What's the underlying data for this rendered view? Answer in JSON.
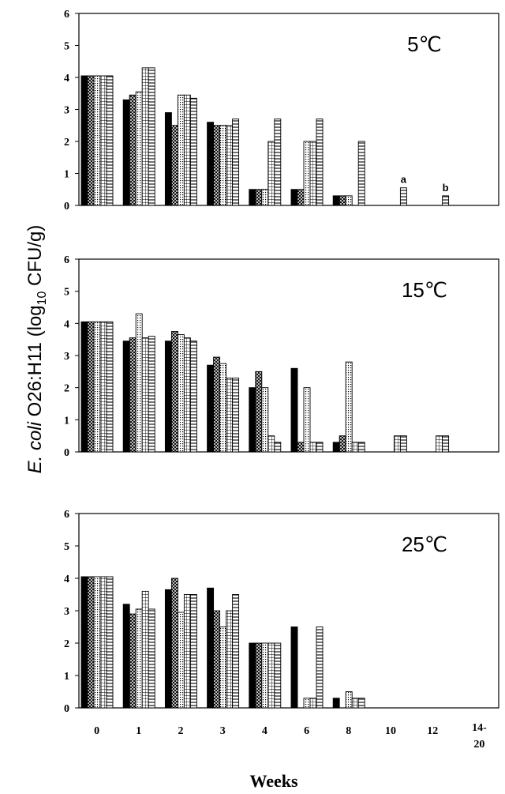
{
  "chart_data": {
    "type": "bar",
    "ylabel_italic": "E. coli",
    "ylabel_rest": " O26:H11 (log",
    "ylabel_sub": "10",
    "ylabel_tail": " CFU/g)",
    "xlabel": "Weeks",
    "categories": [
      "0",
      "1",
      "2",
      "3",
      "4",
      "6",
      "8",
      "10",
      "12",
      "14-20"
    ],
    "y_ticks": [
      "0",
      "1",
      "2",
      "3",
      "4",
      "5",
      "6"
    ],
    "ylim": [
      0,
      6
    ],
    "grid": false,
    "series_patterns": [
      "solid-black",
      "crosshatch",
      "dotted",
      "grid",
      "horizontal-lines",
      "white"
    ],
    "panels": [
      {
        "label": "5℃",
        "series": [
          {
            "values": [
              4.05,
              3.3,
              2.9,
              2.6,
              0.5,
              0.5,
              0.3,
              0,
              0,
              0
            ]
          },
          {
            "values": [
              4.05,
              3.45,
              2.5,
              2.5,
              0.5,
              0.5,
              0.3,
              0,
              0,
              0
            ]
          },
          {
            "values": [
              4.05,
              3.55,
              3.45,
              2.5,
              0.5,
              2.0,
              0.3,
              0,
              0,
              0
            ]
          },
          {
            "values": [
              4.05,
              4.3,
              3.45,
              2.5,
              2.0,
              2.0,
              0,
              0,
              0,
              0
            ]
          },
          {
            "values": [
              4.05,
              4.3,
              3.35,
              2.7,
              2.7,
              2.7,
              2.0,
              0.55,
              0.3,
              0
            ]
          },
          {
            "values": [
              0,
              0,
              0,
              0,
              0,
              0,
              0,
              0,
              0,
              0
            ]
          }
        ],
        "annotations": [
          {
            "text": "a",
            "category": "10",
            "value": 0.55
          },
          {
            "text": "b",
            "category": "12",
            "value": 0.3
          }
        ]
      },
      {
        "label": "15℃",
        "series": [
          {
            "values": [
              4.05,
              3.45,
              3.45,
              2.7,
              2.0,
              2.6,
              0.3,
              0,
              0,
              0
            ]
          },
          {
            "values": [
              4.05,
              3.55,
              3.75,
              2.95,
              2.5,
              0.3,
              0.5,
              0,
              0,
              0
            ]
          },
          {
            "values": [
              4.05,
              4.3,
              3.65,
              2.75,
              2.0,
              2.0,
              2.8,
              0,
              0,
              0
            ]
          },
          {
            "values": [
              4.05,
              3.55,
              3.55,
              2.3,
              0.5,
              0.3,
              0.3,
              0.5,
              0.5,
              0
            ]
          },
          {
            "values": [
              4.05,
              3.6,
              3.45,
              2.3,
              0.3,
              0.3,
              0.3,
              0.5,
              0.5,
              0
            ]
          },
          {
            "values": [
              0,
              0,
              0,
              0,
              0,
              0,
              0,
              0,
              0,
              0
            ]
          }
        ]
      },
      {
        "label": "25℃",
        "series": [
          {
            "values": [
              4.05,
              3.2,
              3.65,
              3.7,
              2.0,
              2.5,
              0.3,
              0,
              0,
              0
            ]
          },
          {
            "values": [
              4.05,
              2.9,
              4.0,
              3.0,
              2.0,
              0,
              0,
              0,
              0,
              0
            ]
          },
          {
            "values": [
              4.05,
              3.05,
              2.95,
              2.5,
              2.0,
              0.3,
              0.5,
              0,
              0,
              0
            ]
          },
          {
            "values": [
              4.05,
              3.6,
              3.5,
              3.0,
              2.0,
              0.3,
              0.3,
              0,
              0,
              0
            ]
          },
          {
            "values": [
              4.05,
              3.05,
              3.5,
              3.5,
              2.0,
              2.5,
              0.3,
              0,
              0,
              0
            ]
          },
          {
            "values": [
              0,
              0,
              0,
              0,
              0,
              0,
              0,
              0,
              0,
              0
            ]
          }
        ]
      }
    ]
  }
}
